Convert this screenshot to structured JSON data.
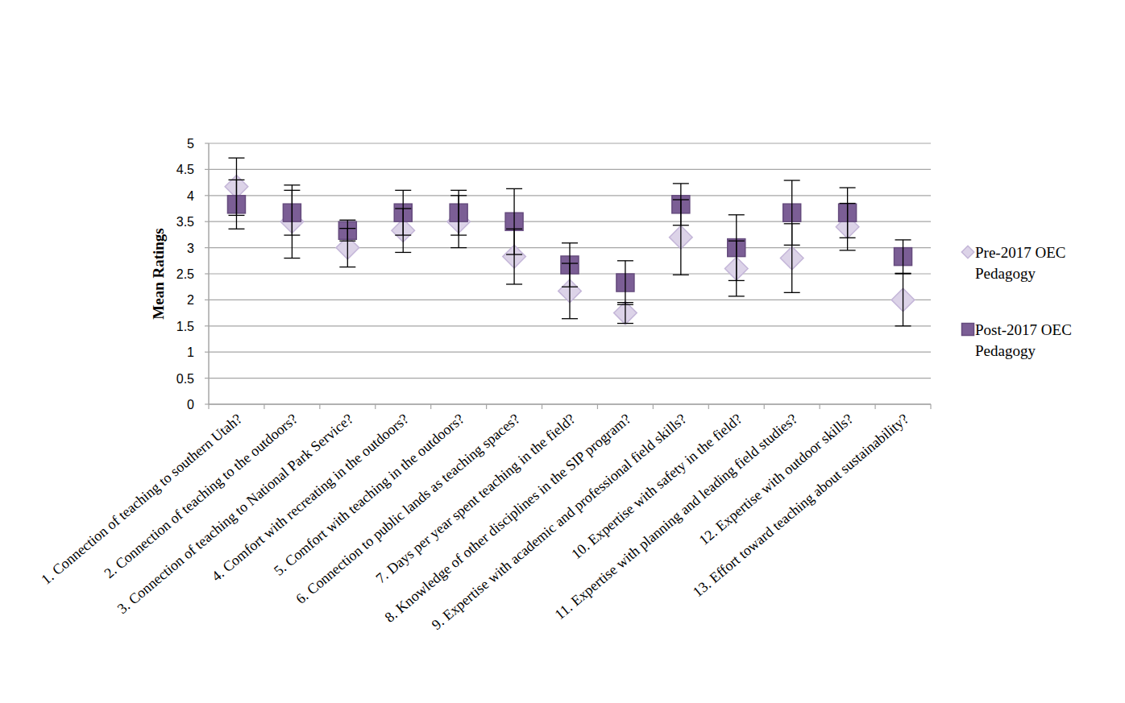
{
  "chart_data": {
    "type": "scatter",
    "y_label": "Mean Ratings",
    "categories": [
      "1. Connection of teaching to southern Utah?",
      "2. Connection of teaching to the outdoors?",
      "3. Connection of teaching to National Park Service?",
      "4. Comfort with recreating in the outdoors?",
      "5. Comfort with teaching in the outdoors?",
      "6. Connection to public lands as teaching spaces?",
      "7. Days per year spent teaching in the field?",
      "8. Knowledge of other disciplines in the SIP program?",
      "9. Expertise with academic and professional field skills?",
      "10. Expertise with safety in the field?",
      "11. Expertise with planning and leading field studies?",
      "12. Expertise with outdoor skills?",
      "13. Effort toward teaching about sustainability?"
    ],
    "series": [
      {
        "name": "Pre-2017 OEC Pedagogy",
        "color": "#dcd3e8",
        "marker": "diamond",
        "values": [
          4.17,
          3.5,
          3.0,
          3.33,
          3.5,
          2.83,
          2.17,
          1.75,
          3.2,
          2.6,
          2.8,
          3.4,
          2.0
        ],
        "error": [
          0.55,
          0.7,
          0.37,
          0.42,
          0.5,
          0.53,
          0.53,
          0.2,
          0.72,
          0.53,
          0.66,
          0.45,
          0.5
        ]
      },
      {
        "name": "Post-2017 OEC Pedagogy",
        "color": "#7b5e95",
        "marker": "square",
        "values": [
          3.83,
          3.67,
          3.33,
          3.67,
          3.67,
          3.5,
          2.67,
          2.33,
          3.83,
          3.0,
          3.67,
          3.67,
          2.83
        ],
        "error": [
          0.47,
          0.43,
          0.2,
          0.43,
          0.43,
          0.63,
          0.42,
          0.42,
          0.4,
          0.63,
          0.62,
          0.48,
          0.32
        ]
      }
    ],
    "ylim": [
      0,
      5
    ],
    "yticks": [
      0,
      0.5,
      1,
      1.5,
      2,
      2.5,
      3,
      3.5,
      4,
      4.5,
      5
    ],
    "grid": true,
    "legend": "right"
  }
}
